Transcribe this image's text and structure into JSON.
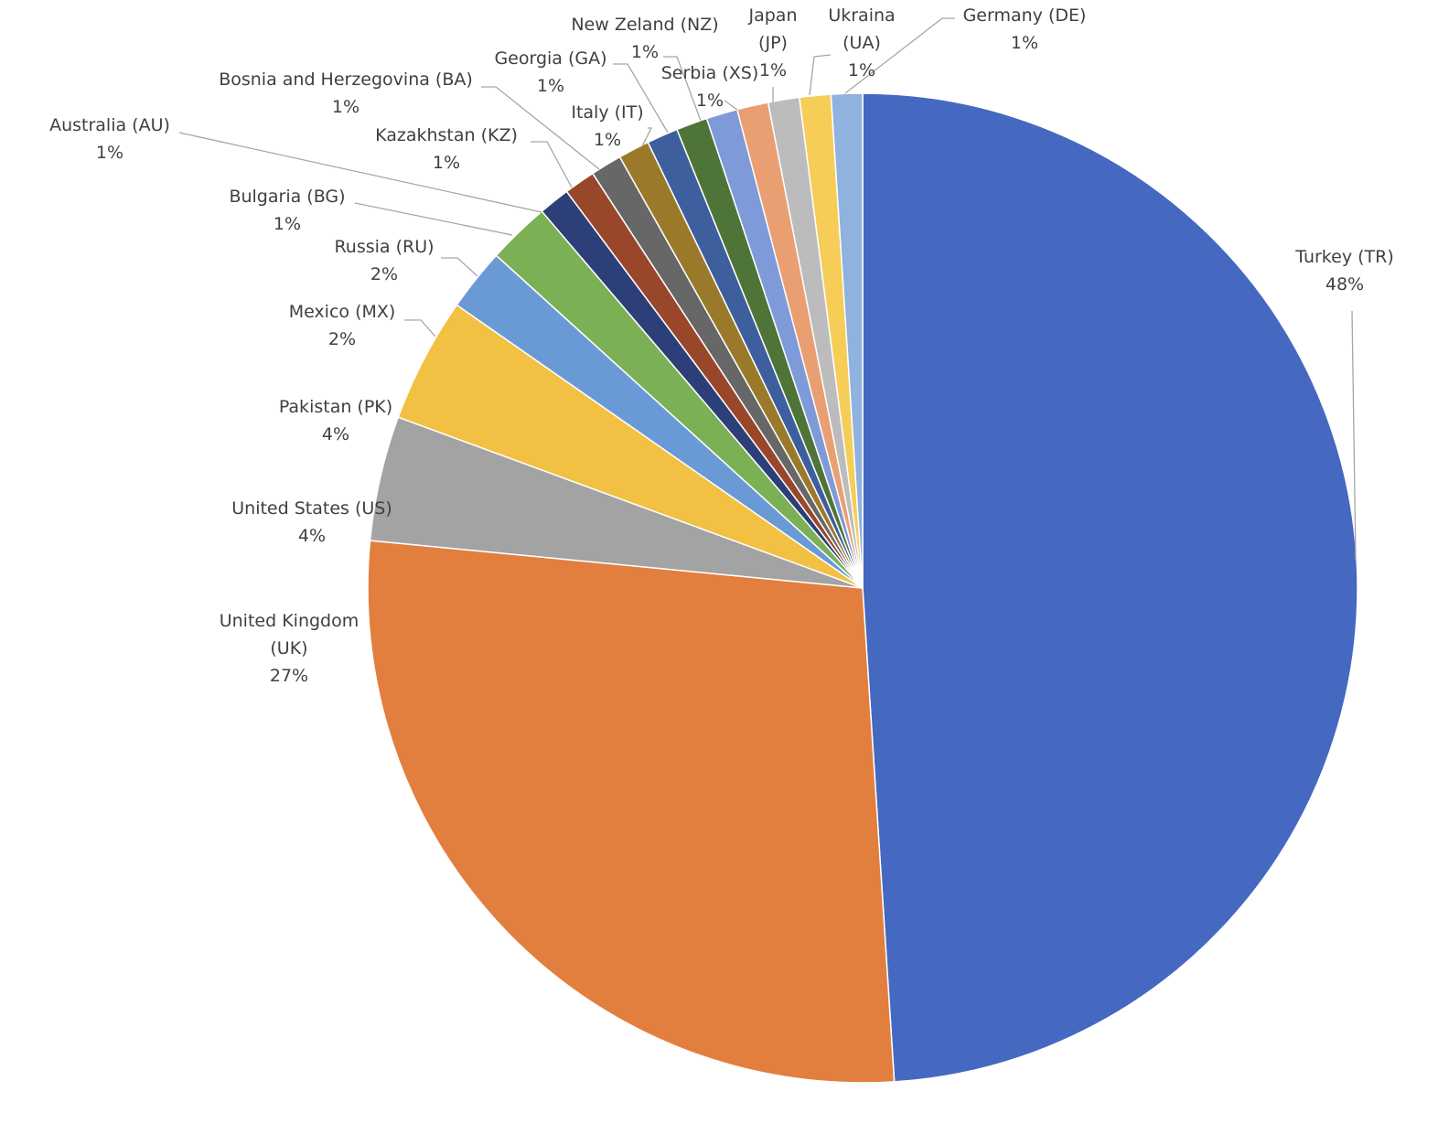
{
  "chart_data": {
    "type": "pie",
    "categories": [
      "Turkey (TR)",
      "United Kingdom (UK)",
      "United States (US)",
      "Pakistan (PK)",
      "Mexico (MX)",
      "Russia (RU)",
      "Bulgaria (BG)",
      "Australia (AU)",
      "Kazakhstan (KZ)",
      "Bosnia and Herzegovina (BA)",
      "Italy (IT)",
      "Georgia (GA)",
      "New Zeland (NZ)",
      "Serbia (XS)",
      "Japan (JP)",
      "Ukraina (UA)",
      "Germany (DE)"
    ],
    "values": [
      48,
      27,
      4,
      4,
      2,
      2,
      1,
      1,
      1,
      1,
      1,
      1,
      1,
      1,
      1,
      1,
      1
    ],
    "value_labels": [
      "48%",
      "27%",
      "4%",
      "4%",
      "2%",
      "2%",
      "1%",
      "1%",
      "1%",
      "1%",
      "1%",
      "1%",
      "1%",
      "1%",
      "1%",
      "1%",
      "1%"
    ],
    "colors": [
      "#4568c0",
      "#e27f3e",
      "#a3a3a3",
      "#f2c042",
      "#6a9ad6",
      "#7bb054",
      "#2d3f78",
      "#99472a",
      "#676767",
      "#9a7a2a",
      "#3e5f9e",
      "#4f7437",
      "#7f9ad8",
      "#e99f72",
      "#bcbcbc",
      "#f6cd56",
      "#8fb2de"
    ]
  }
}
